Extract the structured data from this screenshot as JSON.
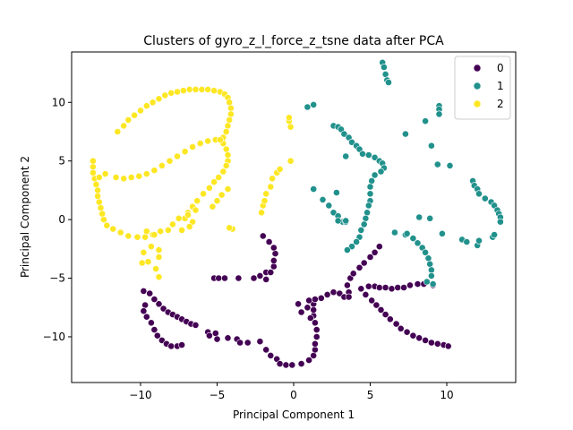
{
  "chart_data": {
    "type": "scatter",
    "title": "Clusters of gyro_z_l_force_z_tsne data after PCA",
    "xlabel": "Principal Component 1",
    "ylabel": "Principal Component 2",
    "xlim": [
      -14.5,
      14.5
    ],
    "ylim": [
      -13.9,
      14.3
    ],
    "xticks": [
      -10,
      -5,
      0,
      5,
      10
    ],
    "yticks": [
      -10,
      -5,
      0,
      5,
      10
    ],
    "grid": false,
    "legend": {
      "placement": "top-right",
      "title": ""
    },
    "series": [
      {
        "name": "0",
        "color": "#440154",
        "points": [
          [
            -9.8,
            -6.1
          ],
          [
            -9.4,
            -6.3
          ],
          [
            -9.1,
            -6.8
          ],
          [
            -8.8,
            -7.2
          ],
          [
            -8.5,
            -7.6
          ],
          [
            -8.2,
            -7.9
          ],
          [
            -7.9,
            -8.1
          ],
          [
            -7.6,
            -8.3
          ],
          [
            -7.3,
            -8.5
          ],
          [
            -7.0,
            -8.7
          ],
          [
            -6.7,
            -8.9
          ],
          [
            -6.4,
            -9.0
          ],
          [
            -9.7,
            -7.3
          ],
          [
            -9.8,
            -7.8
          ],
          [
            -9.6,
            -8.3
          ],
          [
            -9.3,
            -8.8
          ],
          [
            -9.1,
            -9.4
          ],
          [
            -8.9,
            -9.9
          ],
          [
            -8.6,
            -10.3
          ],
          [
            -8.3,
            -10.6
          ],
          [
            -8.0,
            -10.8
          ],
          [
            -7.6,
            -10.8
          ],
          [
            -7.3,
            -10.7
          ],
          [
            -5.6,
            -9.6
          ],
          [
            -5.5,
            -9.9
          ],
          [
            -5.1,
            -9.7
          ],
          [
            -5.0,
            -10.2
          ],
          [
            -4.3,
            -10.1
          ],
          [
            -3.7,
            -10.2
          ],
          [
            -3.5,
            -10.5
          ],
          [
            -3.0,
            -10.5
          ],
          [
            -2.2,
            -10.4
          ],
          [
            -1.8,
            -11.1
          ],
          [
            -1.5,
            -11.6
          ],
          [
            -1.1,
            -11.9
          ],
          [
            -0.9,
            -12.3
          ],
          [
            -0.5,
            -12.4
          ],
          [
            -0.1,
            -12.4
          ],
          [
            0.5,
            -12.3
          ],
          [
            1.0,
            -12.0
          ],
          [
            1.3,
            -11.6
          ],
          [
            1.4,
            -11.1
          ],
          [
            1.4,
            -10.6
          ],
          [
            1.5,
            -10.0
          ],
          [
            1.5,
            -9.4
          ],
          [
            1.4,
            -8.8
          ],
          [
            1.3,
            -8.2
          ],
          [
            1.3,
            -7.7
          ],
          [
            1.3,
            -7.2
          ],
          [
            1.4,
            -6.8
          ],
          [
            1.8,
            -6.7
          ],
          [
            2.2,
            -6.4
          ],
          [
            2.6,
            -6.2
          ],
          [
            3.0,
            -6.3
          ],
          [
            3.3,
            -6.6
          ],
          [
            3.5,
            -5.6
          ],
          [
            3.6,
            -6.2
          ],
          [
            3.6,
            -6.6
          ],
          [
            0.3,
            -7.2
          ],
          [
            0.5,
            -7.9
          ],
          [
            1.0,
            -6.9
          ],
          [
            0.9,
            -7.5
          ],
          [
            1.1,
            -8.4
          ],
          [
            3.7,
            -5.0
          ],
          [
            3.9,
            -4.6
          ],
          [
            4.3,
            -4.1
          ],
          [
            4.6,
            -3.7
          ],
          [
            5.0,
            -3.2
          ],
          [
            5.3,
            -2.8
          ],
          [
            5.6,
            -2.3
          ],
          [
            4.4,
            -5.9
          ],
          [
            4.7,
            -6.4
          ],
          [
            5.1,
            -6.9
          ],
          [
            5.4,
            -7.3
          ],
          [
            5.7,
            -7.7
          ],
          [
            6.0,
            -8.1
          ],
          [
            6.3,
            -8.5
          ],
          [
            6.7,
            -8.9
          ],
          [
            7.0,
            -9.3
          ],
          [
            7.4,
            -9.6
          ],
          [
            7.8,
            -9.9
          ],
          [
            8.2,
            -10.1
          ],
          [
            8.6,
            -10.3
          ],
          [
            9.0,
            -10.5
          ],
          [
            9.4,
            -10.6
          ],
          [
            9.8,
            -10.7
          ],
          [
            10.1,
            -10.8
          ],
          [
            4.9,
            -5.7
          ],
          [
            5.3,
            -5.7
          ],
          [
            5.6,
            -5.8
          ],
          [
            6.0,
            -5.8
          ],
          [
            6.4,
            -5.9
          ],
          [
            6.8,
            -5.8
          ],
          [
            7.2,
            -5.8
          ],
          [
            7.6,
            -5.6
          ],
          [
            8.1,
            -5.5
          ],
          [
            8.5,
            -5.5
          ],
          [
            9.1,
            -5.6
          ],
          [
            -5.2,
            -5.0
          ],
          [
            -4.9,
            -5.0
          ],
          [
            -4.5,
            -5.0
          ],
          [
            -3.6,
            -5.0
          ],
          [
            -2.6,
            -5.0
          ],
          [
            -2.2,
            -4.8
          ],
          [
            -1.8,
            -4.5
          ],
          [
            -1.5,
            -4.5
          ],
          [
            -1.3,
            -4.0
          ],
          [
            -1.3,
            -3.5
          ],
          [
            -1.2,
            -2.9
          ],
          [
            -1.3,
            -2.4
          ],
          [
            -1.6,
            -1.9
          ],
          [
            -2.0,
            -1.4
          ],
          [
            -1.8,
            -5.1
          ]
        ]
      },
      {
        "name": "1",
        "color": "#21918c",
        "points": [
          [
            5.8,
            13.4
          ],
          [
            5.9,
            13.0
          ],
          [
            6.0,
            12.4
          ],
          [
            6.1,
            11.9
          ],
          [
            6.2,
            11.7
          ],
          [
            0.9,
            9.6
          ],
          [
            1.3,
            9.8
          ],
          [
            9.5,
            9.7
          ],
          [
            9.5,
            9.4
          ],
          [
            9.5,
            9.0
          ],
          [
            7.3,
            7.3
          ],
          [
            8.6,
            8.4
          ],
          [
            9.0,
            6.3
          ],
          [
            9.4,
            4.7
          ],
          [
            10.2,
            4.6
          ],
          [
            2.6,
            8.0
          ],
          [
            2.9,
            7.9
          ],
          [
            3.1,
            7.7
          ],
          [
            3.3,
            7.3
          ],
          [
            3.6,
            7.0
          ],
          [
            3.8,
            6.6
          ],
          [
            4.1,
            6.3
          ],
          [
            4.3,
            6.0
          ],
          [
            4.5,
            5.6
          ],
          [
            3.4,
            5.4
          ],
          [
            4.9,
            5.5
          ],
          [
            5.3,
            5.3
          ],
          [
            5.6,
            5.0
          ],
          [
            5.8,
            4.8
          ],
          [
            5.9,
            4.4
          ],
          [
            5.7,
            4.1
          ],
          [
            5.3,
            3.8
          ],
          [
            5.1,
            3.3
          ],
          [
            5.0,
            2.8
          ],
          [
            5.0,
            2.2
          ],
          [
            5.0,
            1.6
          ],
          [
            4.9,
            1.2
          ],
          [
            4.8,
            0.6
          ],
          [
            4.7,
            0.1
          ],
          [
            4.6,
            -0.4
          ],
          [
            4.4,
            -0.9
          ],
          [
            4.3,
            -1.5
          ],
          [
            4.1,
            -1.9
          ],
          [
            3.8,
            -2.3
          ],
          [
            3.5,
            -2.6
          ],
          [
            1.3,
            2.6
          ],
          [
            1.9,
            1.7
          ],
          [
            2.3,
            1.2
          ],
          [
            2.8,
            2.3
          ],
          [
            2.6,
            0.6
          ],
          [
            2.9,
            0.3
          ],
          [
            3.2,
            -0.2
          ],
          [
            3.4,
            -0.2
          ],
          [
            2.9,
            -0.1
          ],
          [
            3.4,
            -0.1
          ],
          [
            6.6,
            -1.1
          ],
          [
            7.3,
            -1.3
          ],
          [
            7.8,
            -1.6
          ],
          [
            8.1,
            -2.0
          ],
          [
            8.4,
            -2.4
          ],
          [
            8.6,
            -2.8
          ],
          [
            8.8,
            -3.3
          ],
          [
            8.9,
            -3.8
          ],
          [
            9.0,
            -4.3
          ],
          [
            9.0,
            -4.8
          ],
          [
            8.7,
            -5.3
          ],
          [
            9.1,
            -5.5
          ],
          [
            8.2,
            0.2
          ],
          [
            8.9,
            0.1
          ],
          [
            7.4,
            -1.2
          ],
          [
            9.7,
            -1.2
          ],
          [
            11.0,
            -1.7
          ],
          [
            11.3,
            -1.9
          ],
          [
            12.0,
            -2.2
          ],
          [
            12.1,
            -1.8
          ],
          [
            13.0,
            -1.5
          ],
          [
            13.1,
            -1.3
          ],
          [
            12.5,
            1.8
          ],
          [
            12.9,
            1.5
          ],
          [
            13.1,
            1.2
          ],
          [
            13.3,
            0.8
          ],
          [
            13.4,
            0.5
          ],
          [
            13.5,
            0.2
          ],
          [
            13.5,
            -0.2
          ],
          [
            11.7,
            3.3
          ],
          [
            11.8,
            2.9
          ],
          [
            12.0,
            2.6
          ],
          [
            12.1,
            2.2
          ]
        ]
      },
      {
        "name": "2",
        "color": "#fde725",
        "points": [
          [
            -11.5,
            7.5
          ],
          [
            -11.1,
            8.0
          ],
          [
            -10.8,
            8.5
          ],
          [
            -10.4,
            8.9
          ],
          [
            -10.0,
            9.3
          ],
          [
            -9.6,
            9.7
          ],
          [
            -9.2,
            10.0
          ],
          [
            -8.8,
            10.3
          ],
          [
            -8.4,
            10.6
          ],
          [
            -8.0,
            10.8
          ],
          [
            -7.6,
            10.9
          ],
          [
            -7.2,
            11.0
          ],
          [
            -6.8,
            11.1
          ],
          [
            -6.4,
            11.1
          ],
          [
            -6.0,
            11.1
          ],
          [
            -5.6,
            11.1
          ],
          [
            -5.2,
            11.0
          ],
          [
            -4.8,
            10.9
          ],
          [
            -4.5,
            10.7
          ],
          [
            -4.3,
            10.4
          ],
          [
            -4.2,
            10.0
          ],
          [
            -4.1,
            9.5
          ],
          [
            -4.1,
            9.0
          ],
          [
            -4.2,
            8.5
          ],
          [
            -4.3,
            8.0
          ],
          [
            -4.4,
            7.5
          ],
          [
            -4.6,
            7.0
          ],
          [
            -4.6,
            6.5
          ],
          [
            -4.4,
            6.0
          ],
          [
            -4.3,
            5.5
          ],
          [
            -4.3,
            5.0
          ],
          [
            -4.4,
            4.6
          ],
          [
            -4.6,
            4.1
          ],
          [
            -4.9,
            3.6
          ],
          [
            -5.2,
            3.2
          ],
          [
            -5.5,
            2.7
          ],
          [
            -5.9,
            2.2
          ],
          [
            -6.3,
            1.6
          ],
          [
            -6.6,
            1.1
          ],
          [
            -6.9,
            0.6
          ],
          [
            -7.1,
            0.1
          ],
          [
            -7.5,
            0.1
          ],
          [
            -7.9,
            -0.4
          ],
          [
            -8.2,
            -0.9
          ],
          [
            -8.7,
            -1.0
          ],
          [
            -9.2,
            -1.3
          ],
          [
            -9.7,
            -1.5
          ],
          [
            -10.2,
            -1.5
          ],
          [
            -10.8,
            -1.4
          ],
          [
            -11.3,
            -1.1
          ],
          [
            -11.8,
            -0.8
          ],
          [
            -12.2,
            -0.5
          ],
          [
            -12.4,
            0.0
          ],
          [
            -12.5,
            0.5
          ],
          [
            -12.6,
            1.0
          ],
          [
            -12.7,
            1.5
          ],
          [
            -12.8,
            2.0
          ],
          [
            -12.8,
            2.5
          ],
          [
            -12.9,
            3.0
          ],
          [
            -13.0,
            3.5
          ],
          [
            -13.1,
            4.0
          ],
          [
            -13.1,
            4.5
          ],
          [
            -13.1,
            5.0
          ],
          [
            -12.7,
            3.6
          ],
          [
            -12.3,
            3.9
          ],
          [
            -11.6,
            3.6
          ],
          [
            -11.1,
            3.5
          ],
          [
            -10.6,
            3.6
          ],
          [
            -10.1,
            3.7
          ],
          [
            -9.6,
            3.9
          ],
          [
            -9.1,
            4.2
          ],
          [
            -8.6,
            4.6
          ],
          [
            -8.1,
            5.0
          ],
          [
            -7.6,
            5.4
          ],
          [
            -7.1,
            5.8
          ],
          [
            -6.6,
            6.2
          ],
          [
            -6.1,
            6.5
          ],
          [
            -5.6,
            6.7
          ],
          [
            -5.1,
            6.8
          ],
          [
            -4.8,
            6.8
          ],
          [
            -9.1,
            -1.3
          ],
          [
            -9.6,
            -1.0
          ],
          [
            -9.3,
            -2.3
          ],
          [
            -9.8,
            -2.8
          ],
          [
            -9.9,
            -3.7
          ],
          [
            -9.5,
            -3.6
          ],
          [
            -8.8,
            -2.6
          ],
          [
            -8.8,
            -3.2
          ],
          [
            -9.0,
            -4.2
          ],
          [
            -8.8,
            -4.9
          ],
          [
            -7.3,
            -0.9
          ],
          [
            -6.9,
            0.4
          ],
          [
            -6.6,
            -0.2
          ],
          [
            -6.8,
            -0.6
          ],
          [
            -6.4,
            0.8
          ],
          [
            -5.3,
            1.1
          ],
          [
            -5.0,
            1.6
          ],
          [
            -4.7,
            2.1
          ],
          [
            -4.3,
            2.6
          ],
          [
            -4.0,
            -0.8
          ],
          [
            -4.2,
            -0.7
          ],
          [
            -2.1,
            0.6
          ],
          [
            -2.0,
            1.2
          ],
          [
            -1.9,
            1.6
          ],
          [
            -1.8,
            2.2
          ],
          [
            -1.5,
            2.8
          ],
          [
            -1.4,
            3.5
          ],
          [
            -1.1,
            4.0
          ],
          [
            -0.9,
            4.3
          ],
          [
            -0.2,
            5.0
          ],
          [
            -0.2,
            7.9
          ],
          [
            -0.3,
            8.4
          ],
          [
            -0.3,
            8.7
          ]
        ]
      }
    ]
  }
}
